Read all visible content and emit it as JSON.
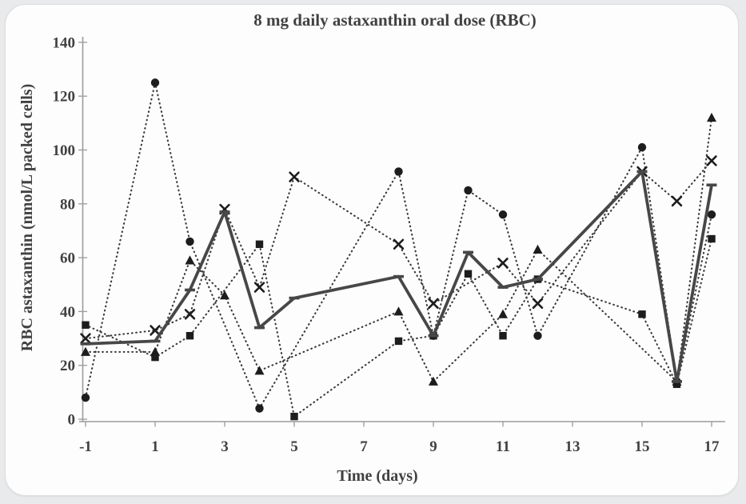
{
  "page": {
    "background_color": "#e9eaec",
    "card_background_color": "#fdfdfd",
    "ink_color": "#3a3a3a",
    "text_color": "#414141",
    "axis_color": "#9b9b9b"
  },
  "chart_data": {
    "type": "line",
    "title": "8 mg daily astaxanthin oral dose (RBC)",
    "xlabel": "Time (days)",
    "ylabel": "RBC astaxanthin (nmol/L packed cells)",
    "xlim": [
      -1,
      17
    ],
    "ylim": [
      0,
      140
    ],
    "x_ticks": [
      -1,
      1,
      3,
      5,
      7,
      9,
      11,
      13,
      15,
      17
    ],
    "y_ticks": [
      0,
      20,
      40,
      60,
      80,
      100,
      120,
      140
    ],
    "grid": false,
    "legend_position": "none",
    "series": [
      {
        "name": "subject-circle",
        "marker": "circle",
        "linestyle": "dotted",
        "points": [
          [
            -1,
            8
          ],
          [
            1,
            125
          ],
          [
            2,
            66
          ],
          [
            4,
            4
          ],
          [
            8,
            92
          ],
          [
            9,
            31
          ],
          [
            10,
            85
          ],
          [
            11,
            76
          ],
          [
            12,
            31
          ],
          [
            15,
            101
          ],
          [
            16,
            14
          ],
          [
            17,
            76
          ]
        ]
      },
      {
        "name": "subject-cross",
        "marker": "x",
        "linestyle": "dotted",
        "points": [
          [
            -1,
            30
          ],
          [
            1,
            33
          ],
          [
            2,
            39
          ],
          [
            3,
            78
          ],
          [
            4,
            49
          ],
          [
            5,
            90
          ],
          [
            8,
            65
          ],
          [
            9,
            43
          ],
          [
            11,
            58
          ],
          [
            12,
            43
          ],
          [
            15,
            92
          ],
          [
            16,
            81
          ],
          [
            17,
            96
          ]
        ]
      },
      {
        "name": "subject-triangle",
        "marker": "triangle",
        "linestyle": "dotted",
        "points": [
          [
            -1,
            25
          ],
          [
            1,
            25
          ],
          [
            2,
            59
          ],
          [
            3,
            46
          ],
          [
            4,
            18
          ],
          [
            8,
            40
          ],
          [
            9,
            14
          ],
          [
            11,
            39
          ],
          [
            12,
            63
          ],
          [
            16,
            14
          ],
          [
            17,
            112
          ]
        ]
      },
      {
        "name": "subject-square",
        "marker": "square",
        "linestyle": "dotted",
        "points": [
          [
            -1,
            35
          ],
          [
            1,
            23
          ],
          [
            2,
            31
          ],
          [
            4,
            65
          ],
          [
            5,
            1
          ],
          [
            8,
            29
          ],
          [
            9,
            31
          ],
          [
            10,
            54
          ],
          [
            11,
            31
          ],
          [
            12,
            52
          ],
          [
            15,
            39
          ],
          [
            16,
            13
          ],
          [
            17,
            67
          ]
        ]
      },
      {
        "name": "mean-solid",
        "marker": "dash",
        "linestyle": "solid",
        "points": [
          [
            -1,
            28
          ],
          [
            1,
            29
          ],
          [
            2,
            48
          ],
          [
            3,
            77
          ],
          [
            4,
            34
          ],
          [
            5,
            45
          ],
          [
            8,
            53
          ],
          [
            9,
            31
          ],
          [
            10,
            62
          ],
          [
            11,
            49
          ],
          [
            12,
            52
          ],
          [
            15,
            92
          ],
          [
            16,
            14
          ],
          [
            17,
            87
          ]
        ]
      }
    ]
  }
}
